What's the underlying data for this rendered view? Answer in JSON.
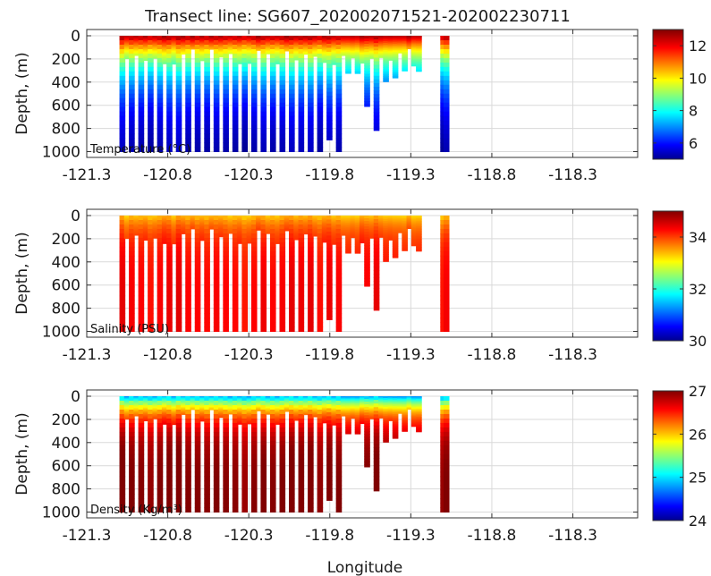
{
  "title": "Transect line: SG607_202002071521-202002230711",
  "colors": {
    "axis": "#333333",
    "grid": "#d9d9d9"
  },
  "chart_data": [
    {
      "type": "scatter",
      "variable_label": "Temperature (°C)",
      "ylabel": "Depth, (m)",
      "xlabel": "",
      "xlim": [
        -121.3,
        -117.9
      ],
      "ylim": [
        1050,
        0
      ],
      "xticks": [
        "-121.3",
        "-120.8",
        "-120.3",
        "-119.8",
        "-119.3",
        "-118.8",
        "-118.3"
      ],
      "yticks": [
        "0",
        "200",
        "400",
        "600",
        "800",
        "1000"
      ],
      "colorbar": {
        "range": [
          5,
          13
        ],
        "ticks": [
          "12",
          "10",
          "8",
          "6"
        ],
        "colormap": "jet"
      },
      "profile_lon_range": [
        -121.08,
        -119.25
      ],
      "profile_count": 64,
      "isolated_profiles_lon": [
        -119.1,
        -119.08
      ],
      "profile_max_depth": 1000,
      "surface_value": 12.8,
      "deep_value": 5.0,
      "depth_scale_m": 320
    },
    {
      "type": "scatter",
      "variable_label": "Salinity (PSU)",
      "ylabel": "Depth, (m)",
      "xlabel": "",
      "xlim": [
        -121.3,
        -117.9
      ],
      "ylim": [
        1050,
        0
      ],
      "xticks": [
        "-121.3",
        "-120.8",
        "-120.3",
        "-119.8",
        "-119.3",
        "-118.8",
        "-118.3"
      ],
      "yticks": [
        "0",
        "200",
        "400",
        "600",
        "800",
        "1000"
      ],
      "colorbar": {
        "range": [
          30,
          35
        ],
        "ticks": [
          "34",
          "32",
          "30"
        ],
        "colormap": "jet"
      },
      "profile_lon_range": [
        -121.08,
        -119.25
      ],
      "profile_count": 64,
      "isolated_profiles_lon": [
        -119.1,
        -119.08
      ],
      "profile_max_depth": 1000,
      "surface_value": 33.4,
      "deep_value": 34.4,
      "depth_scale_m": 150
    },
    {
      "type": "scatter",
      "variable_label": "Density (Kg/m³)",
      "ylabel": "Depth, (m)",
      "xlabel": "Longitude",
      "xlim": [
        -121.3,
        -117.9
      ],
      "ylim": [
        1050,
        0
      ],
      "xticks": [
        "-121.3",
        "-120.8",
        "-120.3",
        "-119.8",
        "-119.3",
        "-118.8",
        "-118.3"
      ],
      "yticks": [
        "0",
        "200",
        "400",
        "600",
        "800",
        "1000"
      ],
      "colorbar": {
        "range": [
          24,
          27
        ],
        "ticks": [
          "27",
          "26",
          "25",
          "24"
        ],
        "colormap": "jet"
      },
      "profile_lon_range": [
        -121.08,
        -119.25
      ],
      "profile_count": 64,
      "isolated_profiles_lon": [
        -119.1,
        -119.08
      ],
      "profile_max_depth": 1000,
      "surface_value": 24.8,
      "deep_value": 27.0,
      "depth_scale_m": 140
    }
  ]
}
